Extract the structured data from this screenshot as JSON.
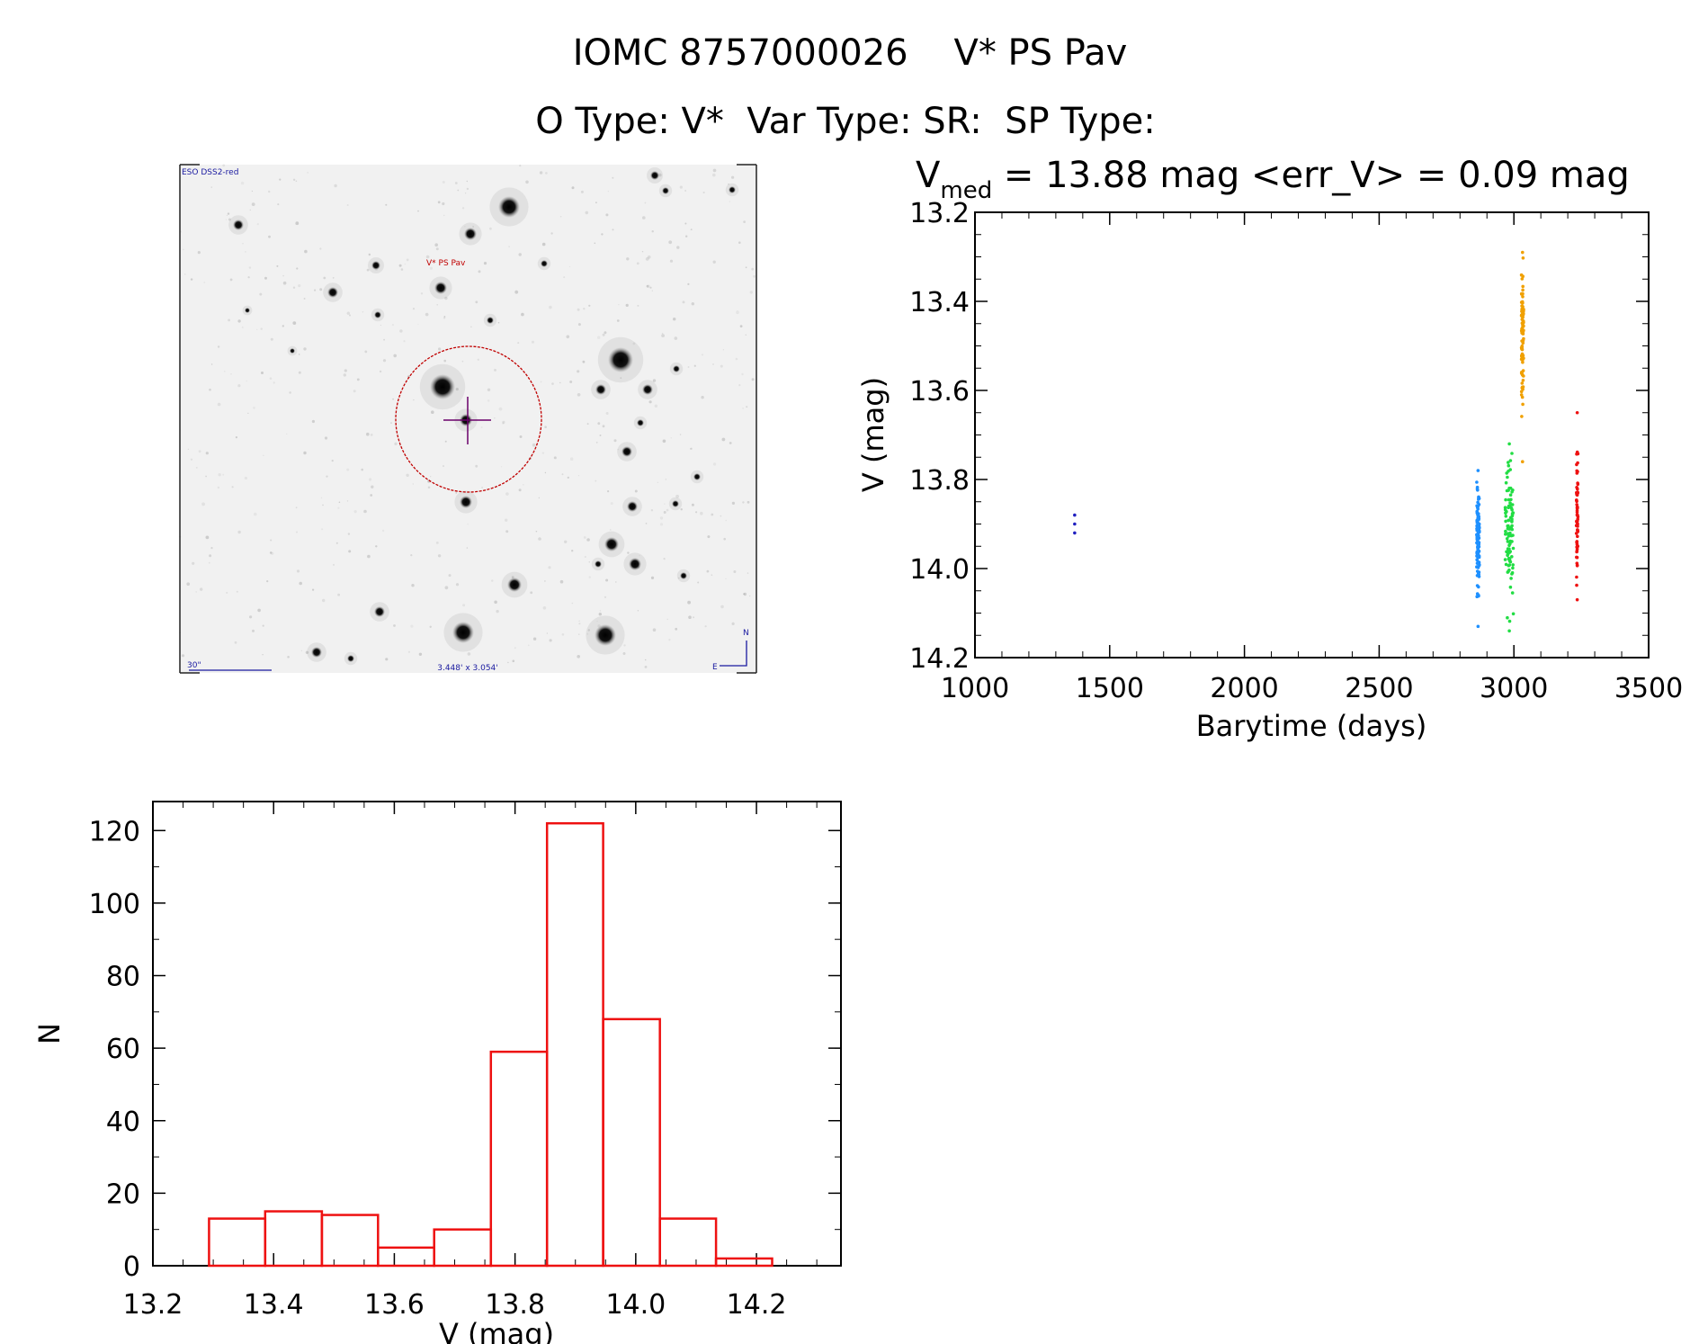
{
  "header": {
    "title": "IOMC 8757000026    V* PS Pav",
    "subtitle": "O Type: V*  Var Type: SR:  SP Type:"
  },
  "finder": {
    "survey_label": "ESO DSS2-red",
    "target_label": "V* PS Pav",
    "scale_label": "30\"",
    "fov_label": "3.448' x 3.054'",
    "north_label": "N",
    "east_label": "E",
    "colors": {
      "circle": "#c00000",
      "crosshair": "#6a006a",
      "labels": "#1a1aa0"
    }
  },
  "lightcurve": {
    "stat_prefix": "V",
    "stat_sub": "med",
    "stat_suffix": " = 13.88 mag <err_V> = 0.09 mag",
    "xlabel": "Barytime (days)",
    "ylabel": "V (mag)"
  },
  "histogram": {
    "xlabel": "V (mag)",
    "ylabel": "N"
  },
  "chart_data": [
    {
      "type": "scatter",
      "xlabel": "Barytime (days)",
      "ylabel": "V (mag)",
      "xlim": [
        1000,
        3500
      ],
      "ylim": [
        14.2,
        13.2
      ],
      "y_inverted": true,
      "xticks": [
        1000,
        1500,
        2000,
        2500,
        3000,
        3500
      ],
      "yticks": [
        13.2,
        13.4,
        13.6,
        13.8,
        14.0,
        14.2
      ],
      "series": [
        {
          "color": "#2020c0",
          "x": [
            1370,
            1370,
            1370
          ],
          "y": [
            13.88,
            13.9,
            13.92
          ]
        },
        {
          "color": "#1e90ff",
          "x_range": [
            2862,
            2872
          ],
          "y_range": [
            13.78,
            14.13
          ],
          "y_center": 13.93,
          "n": 120
        },
        {
          "color": "#22dd44",
          "x_range": [
            2968,
            2998
          ],
          "y_range": [
            13.72,
            14.14
          ],
          "y_center": 13.92,
          "n": 100
        },
        {
          "color": "#f0a000",
          "x_range": [
            3028,
            3036
          ],
          "y_range": [
            13.29,
            13.76
          ],
          "y_center": 13.47,
          "n": 90
        },
        {
          "color": "#ee1111",
          "x_range": [
            3232,
            3238
          ],
          "y_range": [
            13.65,
            14.07
          ],
          "y_center": 13.88,
          "n": 60
        }
      ]
    },
    {
      "type": "bar",
      "xlabel": "V (mag)",
      "ylabel": "N",
      "xlim": [
        13.2,
        14.34
      ],
      "ylim": [
        0,
        128
      ],
      "xticks": [
        13.2,
        13.4,
        13.6,
        13.8,
        14.0,
        14.2
      ],
      "yticks": [
        0,
        20,
        40,
        60,
        80,
        100,
        120
      ],
      "bin_edges": [
        13.293,
        13.386,
        13.48,
        13.573,
        13.666,
        13.76,
        13.853,
        13.946,
        14.04,
        14.133,
        14.226
      ],
      "values": [
        13,
        15,
        14,
        5,
        10,
        59,
        122,
        68,
        13,
        2
      ],
      "color": "#ee1111"
    }
  ]
}
